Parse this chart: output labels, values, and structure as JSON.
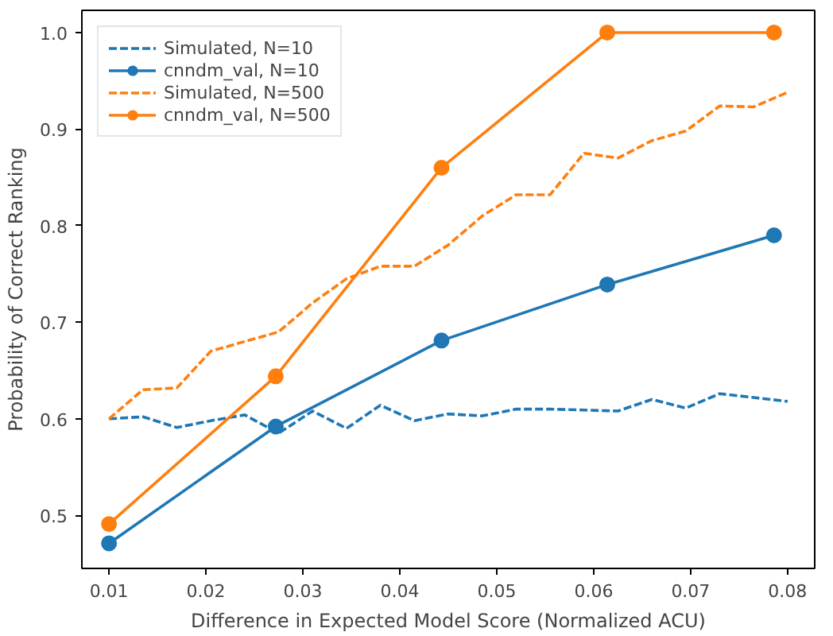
{
  "chart_data": {
    "type": "line",
    "xlabel": "Difference in Expected Model Score (Normalized ACU)",
    "ylabel": "Probability of Correct Ranking",
    "xlim": [
      0.0072,
      0.0828
    ],
    "ylim": [
      0.445,
      1.023
    ],
    "xticks": [
      0.01,
      0.02,
      0.03,
      0.04,
      0.05,
      0.06,
      0.07,
      0.08
    ],
    "yticks": [
      0.5,
      0.6,
      0.7,
      0.8,
      0.9,
      {
        "value": 1.0,
        "label": "1.0"
      }
    ],
    "grid": false,
    "legend": "top left",
    "series": [
      {
        "name": "Simulated, N=10",
        "color": "#1f77b4",
        "line_style": "dashed",
        "marker": "none",
        "x": [
          0.01,
          0.0135,
          0.017,
          0.0205,
          0.024,
          0.0275,
          0.031,
          0.0345,
          0.038,
          0.0415,
          0.045,
          0.0485,
          0.052,
          0.0555,
          0.059,
          0.0625,
          0.066,
          0.0695,
          0.073,
          0.0765,
          0.08
        ],
        "values": [
          0.6,
          0.602,
          0.591,
          0.598,
          0.604,
          0.585,
          0.608,
          0.59,
          0.614,
          0.598,
          0.605,
          0.603,
          0.61,
          0.61,
          0.609,
          0.608,
          0.62,
          0.611,
          0.626,
          0.622,
          0.618
        ]
      },
      {
        "name": "cnndm_val, N=10",
        "color": "#1f77b4",
        "line_style": "solid",
        "marker": "circle",
        "x": [
          0.01,
          0.0272,
          0.0443,
          0.0614,
          0.0786
        ],
        "values": [
          0.471,
          0.592,
          0.681,
          0.739,
          0.79
        ]
      },
      {
        "name": "Simulated, N=500",
        "color": "#ff7f0e",
        "line_style": "dashed",
        "marker": "none",
        "x": [
          0.01,
          0.0135,
          0.017,
          0.0205,
          0.024,
          0.0275,
          0.031,
          0.0345,
          0.038,
          0.0415,
          0.045,
          0.0485,
          0.052,
          0.0555,
          0.059,
          0.0625,
          0.066,
          0.0695,
          0.073,
          0.0765,
          0.08
        ],
        "values": [
          0.6,
          0.63,
          0.632,
          0.67,
          0.68,
          0.69,
          0.72,
          0.745,
          0.758,
          0.758,
          0.78,
          0.81,
          0.832,
          0.832,
          0.875,
          0.87,
          0.888,
          0.898,
          0.924,
          0.923,
          0.938
        ]
      },
      {
        "name": "cnndm_val, N=500",
        "color": "#ff7f0e",
        "line_style": "solid",
        "marker": "circle",
        "x": [
          0.01,
          0.0272,
          0.0443,
          0.0614,
          0.0786
        ],
        "values": [
          0.491,
          0.644,
          0.86,
          1.0,
          1.0
        ]
      }
    ]
  }
}
